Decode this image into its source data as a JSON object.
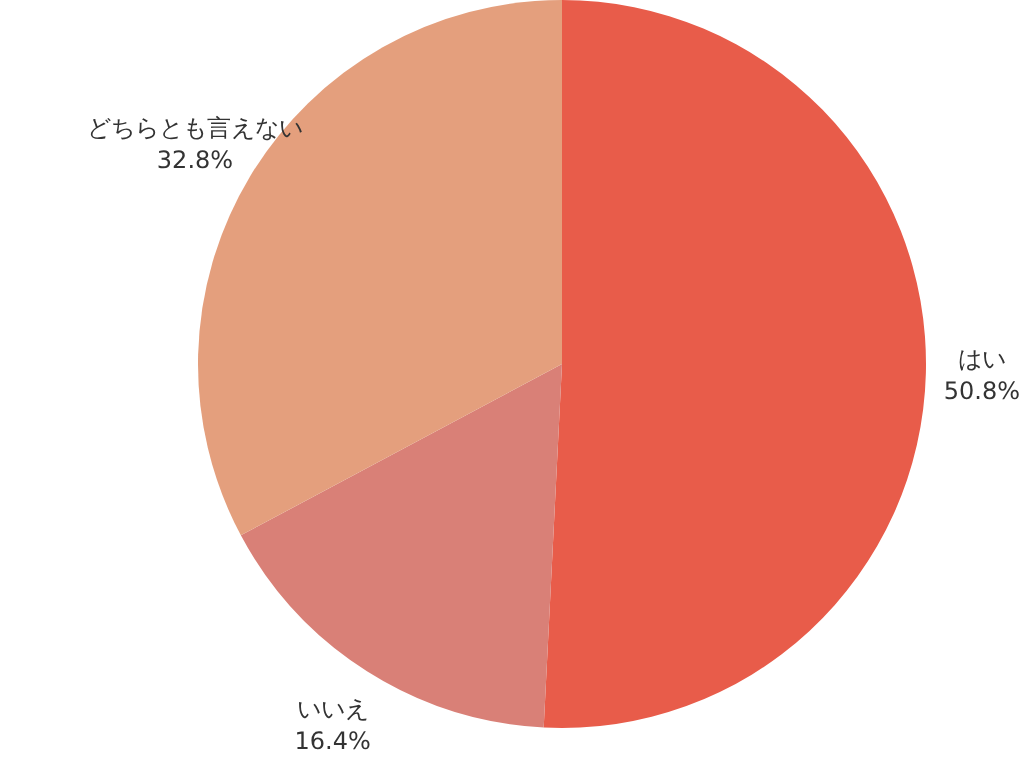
{
  "chart_data": {
    "type": "pie",
    "categories": [
      "はい",
      "いいえ",
      "どちらとも言えない"
    ],
    "values": [
      50.8,
      16.4,
      32.8
    ],
    "value_labels": [
      "50.8%",
      "16.4%",
      "32.8%"
    ],
    "colors": [
      "#e85c4a",
      "#d98077",
      "#e49f7d"
    ],
    "legend": false
  }
}
